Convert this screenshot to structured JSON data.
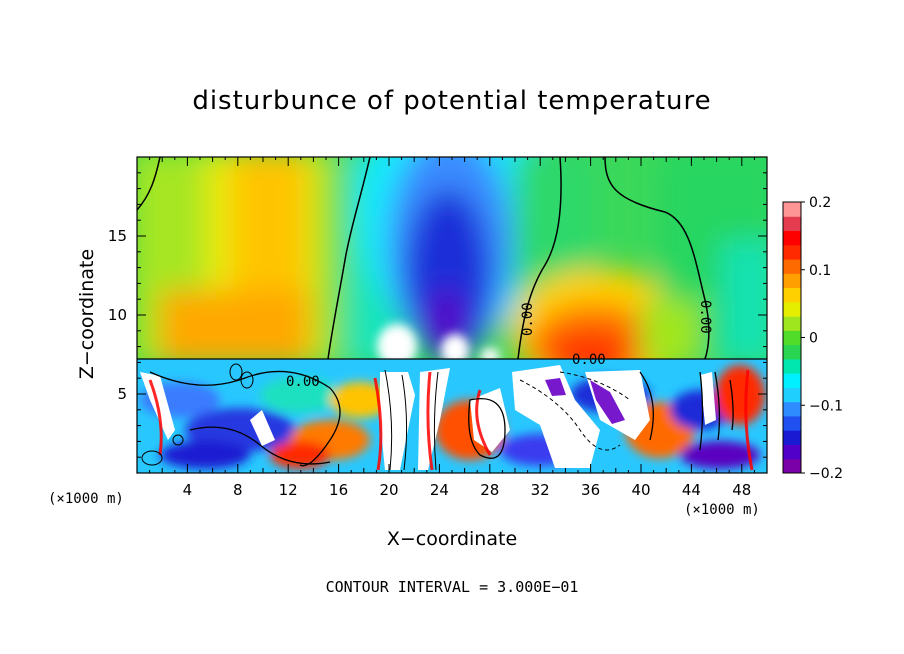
{
  "page": {
    "title": "disturbunce of potential temperature",
    "ylabel": "Z−coordinate",
    "xlabel": "X−coordinate",
    "x_unit_left": "(×1000 m)",
    "x_unit_right": "(×1000 m)",
    "footnote": "CONTOUR INTERVAL = 3.000E−01"
  },
  "chart_data": {
    "type": "heatmap",
    "title": "disturbunce of potential temperature",
    "xlabel": "X−coordinate",
    "ylabel": "Z−coordinate",
    "x_unit": "(×1000 m)",
    "xlim": [
      0,
      50
    ],
    "ylim": [
      0,
      20
    ],
    "x_ticks": [
      "4",
      "8",
      "12",
      "16",
      "20",
      "24",
      "28",
      "32",
      "36",
      "40",
      "44",
      "48"
    ],
    "y_ticks": [
      "5",
      "10",
      "15"
    ],
    "colorbar": {
      "range": [
        -0.2,
        0.2
      ],
      "ticks": [
        "0.2",
        "0.1",
        "0",
        "−0.1",
        "−0.2"
      ],
      "colors": [
        "#7a00a8",
        "#5000c8",
        "#1a1ad2",
        "#2050f0",
        "#2e8cff",
        "#1fd0ff",
        "#00f0ff",
        "#00e8b0",
        "#28d450",
        "#50dc28",
        "#a0e61e",
        "#e6ee00",
        "#ffd000",
        "#ffa000",
        "#ff6a00",
        "#ff2a00",
        "#ff0000",
        "#e63c50",
        "#ff9696"
      ]
    },
    "contour_labels": [
      "0.00",
      "0.00",
      "0.00",
      "0.00"
    ],
    "contour_interval": "3.000E−01"
  }
}
